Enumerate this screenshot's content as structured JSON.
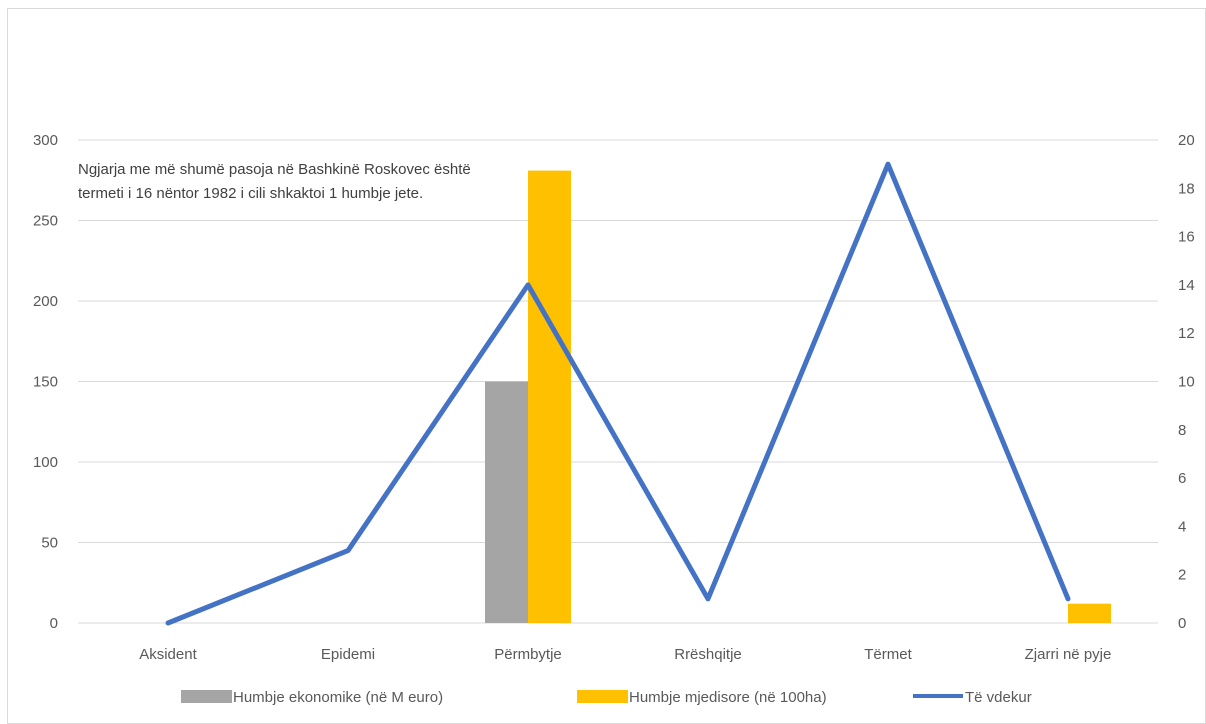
{
  "chart_data": {
    "type": "bar",
    "title": "",
    "categories": [
      "Aksident",
      "Epidemi",
      "Përmbytje",
      "Rrëshqitje",
      "Tërmet",
      "Zjarri në pyje"
    ],
    "series": [
      {
        "name": "Humbje ekonomike (në M euro)",
        "type": "bar",
        "axis": "left",
        "color": "#a5a5a5",
        "values": [
          0,
          0,
          150,
          0,
          0,
          0
        ]
      },
      {
        "name": "Humbje mjedisore (në 100ha)",
        "type": "bar",
        "axis": "left",
        "color": "#ffc000",
        "values": [
          0,
          0,
          281,
          0,
          0,
          12
        ]
      },
      {
        "name": "Të vdekur",
        "type": "line",
        "axis": "right",
        "color": "#4472c4",
        "values": [
          0,
          3,
          14,
          1,
          19,
          1
        ]
      }
    ],
    "y_left": {
      "min": 0,
      "max": 300,
      "ticks": [
        0,
        50,
        100,
        150,
        200,
        250,
        300
      ]
    },
    "y_right": {
      "min": 0,
      "max": 20,
      "ticks": [
        0,
        2,
        4,
        6,
        8,
        10,
        12,
        14,
        16,
        18,
        20
      ]
    },
    "grid": true,
    "legend_position": "bottom",
    "annotation": "Ngjarja me më shumë pasoja në Bashkinë Roskovec është termeti i 16 nëntor 1982 i cili shkaktoi 1 humbje jete."
  }
}
